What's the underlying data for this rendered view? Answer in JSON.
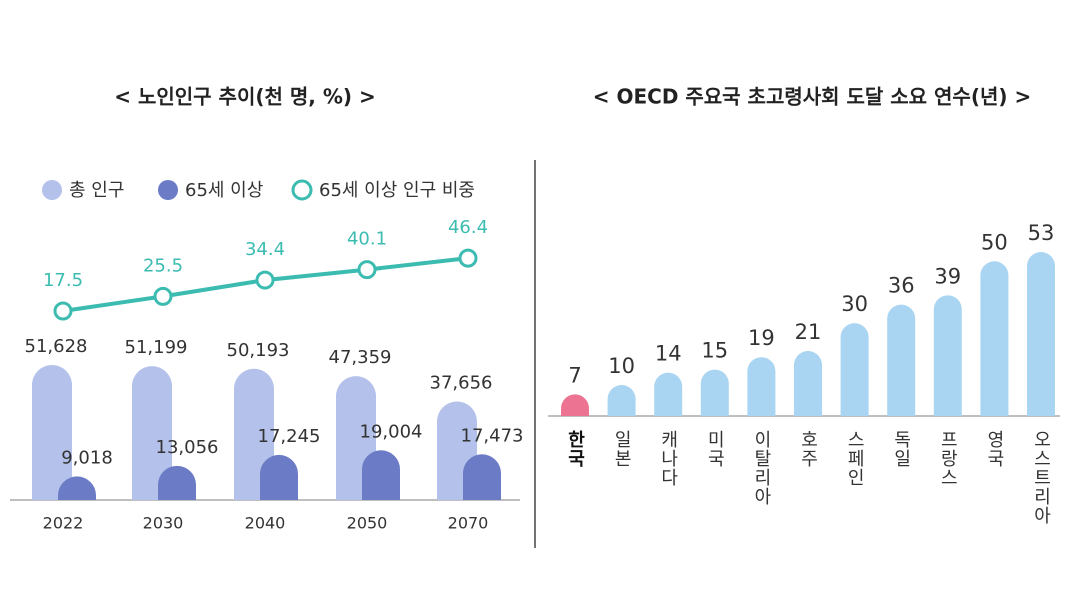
{
  "chart_data": [
    {
      "type": "bar",
      "title": "< 노인인구 추이(천 명, %) >",
      "categories": [
        "2022",
        "2030",
        "2040",
        "2050",
        "2070"
      ],
      "series": [
        {
          "name": "총 인구",
          "color": "#b4c1ea",
          "values": [
            51628,
            51199,
            50193,
            47359,
            37656
          ],
          "value_labels": [
            "51,628",
            "51,199",
            "50,193",
            "47,359",
            "37,656"
          ]
        },
        {
          "name": "65세 이상",
          "color": "#6b7bc6",
          "values": [
            9018,
            13056,
            17245,
            19004,
            17473
          ],
          "value_labels": [
            "9,018",
            "13,056",
            "17,245",
            "19,004",
            "17,473"
          ]
        },
        {
          "name": "65세 이상 인구 비중",
          "color": "#3cbcb1",
          "type": "line",
          "values": [
            17.5,
            25.5,
            34.4,
            40.1,
            46.4
          ]
        }
      ]
    },
    {
      "type": "bar",
      "title": "< OECD 주요국 초고령사회 도달 소요 연수(년) >",
      "categories": [
        "한국",
        "일본",
        "캐나다",
        "미국",
        "이탈리아",
        "호주",
        "스페인",
        "독일",
        "프랑스",
        "영국",
        "오스트리아"
      ],
      "values": [
        7,
        10,
        14,
        15,
        19,
        21,
        30,
        36,
        39,
        50,
        53
      ],
      "colors": [
        "#ec7392",
        "#a9d5f2",
        "#a9d5f2",
        "#a9d5f2",
        "#a9d5f2",
        "#a9d5f2",
        "#a9d5f2",
        "#a9d5f2",
        "#a9d5f2",
        "#a9d5f2",
        "#a9d5f2"
      ]
    }
  ]
}
